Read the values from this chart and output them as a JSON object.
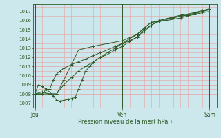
{
  "xlabel": "Pression niveau de la mer( hPa )",
  "background_color": "#cce8ec",
  "grid_color": "#e8a0a0",
  "line_color": "#2d5a27",
  "ylim": [
    1006.5,
    1017.8
  ],
  "yticks": [
    1007,
    1008,
    1009,
    1010,
    1011,
    1012,
    1013,
    1014,
    1015,
    1016,
    1017
  ],
  "xtick_labels": [
    "Jeu",
    "Ven",
    "Sam"
  ],
  "xtick_positions": [
    0.0,
    1.0,
    2.0
  ],
  "xlim": [
    -0.02,
    2.08
  ],
  "series": [
    {
      "x": [
        0.0,
        0.04,
        0.08,
        0.13,
        0.17,
        0.21,
        0.25,
        0.29,
        0.33,
        0.42,
        0.5,
        0.58,
        0.67,
        0.75,
        0.83,
        0.92,
        1.0,
        1.08,
        1.17,
        1.25,
        1.33,
        1.42,
        1.5,
        1.58,
        1.67,
        1.75,
        1.83,
        1.92,
        2.0
      ],
      "y": [
        1008.0,
        1008.0,
        1008.0,
        1008.5,
        1008.5,
        1009.5,
        1010.2,
        1010.5,
        1010.8,
        1011.2,
        1011.5,
        1011.8,
        1012.2,
        1012.5,
        1012.8,
        1013.2,
        1013.5,
        1013.8,
        1014.2,
        1014.8,
        1015.5,
        1016.0,
        1016.2,
        1016.3,
        1016.5,
        1016.6,
        1016.8,
        1017.0,
        1017.2
      ]
    },
    {
      "x": [
        0.0,
        0.04,
        0.08,
        0.13,
        0.17,
        0.21,
        0.25,
        0.29,
        0.33,
        0.38,
        0.42,
        0.46,
        0.5,
        0.54,
        0.58,
        0.63,
        0.67,
        0.75,
        0.83,
        0.92,
        1.0,
        1.08,
        1.17,
        1.25,
        1.33,
        1.42,
        1.5,
        1.58,
        1.67,
        1.75,
        1.83,
        1.92,
        2.0
      ],
      "y": [
        1008.0,
        1009.0,
        1008.8,
        1008.5,
        1008.2,
        1007.8,
        1007.3,
        1007.2,
        1007.3,
        1007.4,
        1007.5,
        1007.6,
        1008.5,
        1009.5,
        1010.5,
        1011.0,
        1011.5,
        1012.0,
        1012.5,
        1013.0,
        1013.5,
        1014.0,
        1014.5,
        1015.2,
        1015.8,
        1016.0,
        1016.2,
        1016.4,
        1016.6,
        1016.7,
        1016.9,
        1017.1,
        1017.3
      ]
    },
    {
      "x": [
        0.0,
        0.08,
        0.17,
        0.25,
        0.33,
        0.42,
        0.5,
        0.58,
        0.67,
        0.75,
        0.83,
        0.92,
        1.0,
        1.08,
        1.17,
        1.25,
        1.33,
        1.42,
        1.5,
        1.58,
        1.67,
        1.75,
        1.83,
        1.92,
        2.0
      ],
      "y": [
        1008.0,
        1008.2,
        1008.0,
        1008.0,
        1009.0,
        1009.8,
        1010.5,
        1011.0,
        1011.5,
        1012.0,
        1012.3,
        1012.8,
        1013.2,
        1013.7,
        1014.2,
        1015.0,
        1015.5,
        1015.9,
        1016.1,
        1016.3,
        1016.5,
        1016.6,
        1016.8,
        1017.0,
        1017.2
      ]
    },
    {
      "x": [
        0.0,
        0.17,
        0.25,
        0.33,
        0.5,
        0.67,
        0.83,
        1.0,
        1.17,
        1.33,
        1.5,
        1.67,
        1.83,
        2.0
      ],
      "y": [
        1008.0,
        1008.0,
        1008.0,
        1009.5,
        1012.8,
        1013.2,
        1013.5,
        1013.8,
        1014.5,
        1015.8,
        1016.0,
        1016.3,
        1016.7,
        1017.0
      ]
    }
  ]
}
